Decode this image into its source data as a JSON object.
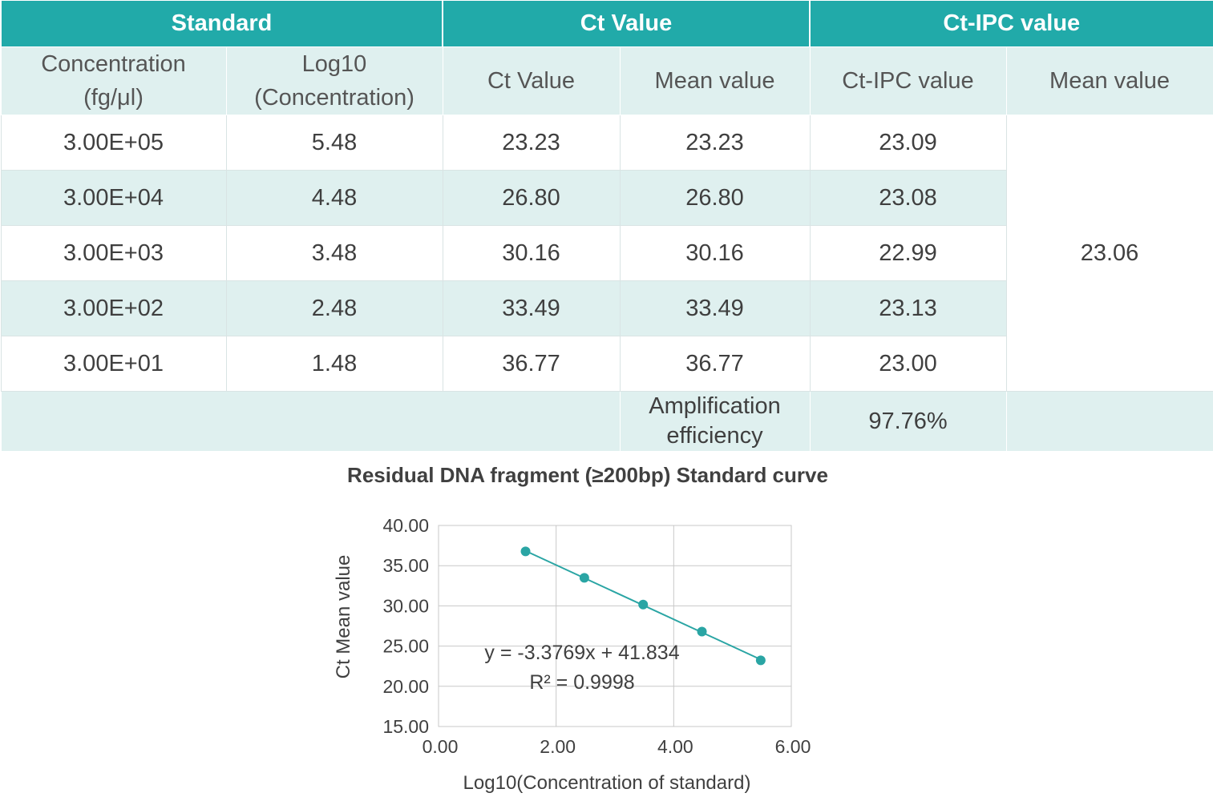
{
  "table": {
    "groups": [
      "Standard",
      "Ct Value",
      "Ct-IPC value"
    ],
    "subheaders": [
      "Concentration\n(fg/μl)",
      "Log10\n(Concentration)",
      "Ct Value",
      "Mean value",
      "Ct-IPC value",
      "Mean value"
    ],
    "rows": [
      [
        "3.00E+05",
        "5.48",
        "23.23",
        "23.23",
        "23.09"
      ],
      [
        "3.00E+04",
        "4.48",
        "26.80",
        "26.80",
        "23.08"
      ],
      [
        "3.00E+03",
        "3.48",
        "30.16",
        "30.16",
        "22.99"
      ],
      [
        "3.00E+02",
        "2.48",
        "33.49",
        "33.49",
        "23.13"
      ],
      [
        "3.00E+01",
        "1.48",
        "36.77",
        "36.77",
        "23.00"
      ]
    ],
    "ipc_mean": "23.06",
    "footer_label": "Amplification efficiency",
    "footer_value": "97.76%"
  },
  "chart_data": {
    "type": "scatter",
    "title": "Residual DNA fragment (≥200bp) Standard curve",
    "xlabel": "Log10(Concentration of standard)",
    "ylabel": "Ct Mean value",
    "xlim": [
      0,
      6
    ],
    "ylim": [
      15,
      40
    ],
    "xticks": [
      "0.00",
      "2.00",
      "4.00",
      "6.00"
    ],
    "yticks": [
      "15.00",
      "20.00",
      "25.00",
      "30.00",
      "35.00",
      "40.00"
    ],
    "x": [
      1.48,
      2.48,
      3.48,
      4.48,
      5.48
    ],
    "y": [
      36.77,
      33.49,
      30.16,
      26.8,
      23.23
    ],
    "trendline": {
      "slope": -3.3769,
      "intercept": 41.834
    },
    "equation": "y = -3.3769x + 41.834",
    "r_squared": "R² = 0.9998",
    "grid": true,
    "color": "#2aa5a4"
  }
}
